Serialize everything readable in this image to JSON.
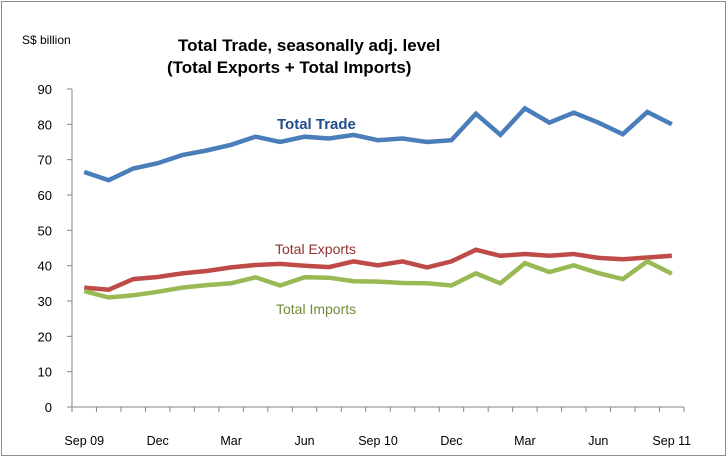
{
  "chart_data": {
    "type": "line",
    "title_line1": "Total Trade, seasonally adj. level",
    "title_line2": "(Total Exports + Total Imports)",
    "ylabel": "S$ billion",
    "xlabel": "",
    "ylim": [
      0,
      90
    ],
    "yticks": [
      "0",
      "10",
      "20",
      "30",
      "40",
      "50",
      "60",
      "70",
      "80",
      "90"
    ],
    "xtick_labels": [
      "Sep 09",
      "Dec",
      "Mar",
      "Jun",
      "Sep 10",
      "Dec",
      "Mar",
      "Jun",
      "Sep 11"
    ],
    "x": [
      "Sep 09",
      "Oct 09",
      "Nov 09",
      "Dec 09",
      "Jan 10",
      "Feb 10",
      "Mar 10",
      "Apr 10",
      "May 10",
      "Jun 10",
      "Jul 10",
      "Aug 10",
      "Sep 10",
      "Oct 10",
      "Nov 10",
      "Dec 10",
      "Jan 11",
      "Feb 11",
      "Mar 11",
      "Apr 11",
      "May 11",
      "Jun 11",
      "Jul 11",
      "Aug 11",
      "Sep 11"
    ],
    "grid": false,
    "legend": "inline labels",
    "series": [
      {
        "name": "Total Trade",
        "color": "#4a7ebb",
        "values": [
          66.5,
          64.2,
          67.5,
          69.0,
          71.3,
          72.6,
          74.2,
          76.5,
          75.0,
          76.5,
          76.0,
          77.0,
          75.5,
          76.0,
          75.0,
          75.5,
          83.0,
          77.0,
          84.5,
          80.5,
          83.3,
          80.5,
          77.2,
          83.5,
          80.0
        ]
      },
      {
        "name": "Total Exports",
        "color": "#be4b48",
        "values": [
          33.8,
          33.2,
          36.2,
          36.8,
          37.8,
          38.5,
          39.5,
          40.2,
          40.5,
          40.0,
          39.6,
          41.2,
          40.1,
          41.2,
          39.5,
          41.2,
          44.5,
          42.8,
          43.3,
          42.8,
          43.3,
          42.2,
          41.8,
          42.3,
          42.8
        ]
      },
      {
        "name": "Total Imports",
        "color": "#98b954",
        "values": [
          32.8,
          31.0,
          31.6,
          32.6,
          33.8,
          34.5,
          35.0,
          36.7,
          34.4,
          36.7,
          36.6,
          35.6,
          35.5,
          35.1,
          35.0,
          34.4,
          37.8,
          35.0,
          40.7,
          38.2,
          40.1,
          37.9,
          36.2,
          41.2,
          37.7
        ]
      }
    ]
  }
}
